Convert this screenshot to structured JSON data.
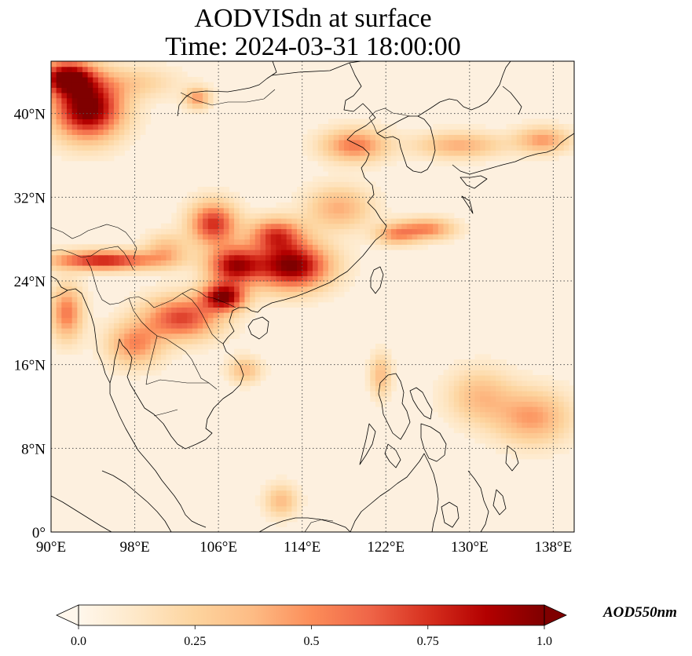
{
  "title": {
    "line1": "AODVISdn at surface",
    "line2": "Time: 2024-03-31 18:00:00"
  },
  "map": {
    "projection": "PlateCarree",
    "lon_range": [
      90,
      140
    ],
    "lat_range": [
      0,
      45
    ],
    "gridlines": true,
    "lon_ticks": [
      90,
      98,
      106,
      114,
      122,
      130,
      138
    ],
    "lon_labels": [
      "90°E",
      "98°E",
      "106°E",
      "114°E",
      "122°E",
      "130°E",
      "138°E"
    ],
    "lat_ticks": [
      0,
      8,
      16,
      24,
      32,
      40
    ],
    "lat_labels": [
      "0°",
      "8°N",
      "16°N",
      "24°N",
      "32°N",
      "40°N"
    ],
    "field": "AOD550nm",
    "background_color": "#fdf0df",
    "aerosol_hotspots": [
      {
        "lon": 93.5,
        "lat": 40.5,
        "value": 1.0,
        "sx": 3.2,
        "sy": 2.8
      },
      {
        "lon": 91.5,
        "lat": 43.5,
        "value": 0.9,
        "sx": 2.5,
        "sy": 1.6
      },
      {
        "lon": 113.0,
        "lat": 25.5,
        "value": 0.95,
        "sx": 3.5,
        "sy": 2.2
      },
      {
        "lon": 107.5,
        "lat": 25.5,
        "value": 0.8,
        "sx": 2.5,
        "sy": 1.8
      },
      {
        "lon": 106.5,
        "lat": 22.5,
        "value": 0.9,
        "sx": 2.0,
        "sy": 1.3
      },
      {
        "lon": 105.5,
        "lat": 29.5,
        "value": 0.7,
        "sx": 2.2,
        "sy": 2.0
      },
      {
        "lon": 111.5,
        "lat": 28.5,
        "value": 0.6,
        "sx": 2.5,
        "sy": 1.5
      },
      {
        "lon": 102.5,
        "lat": 20.5,
        "value": 0.65,
        "sx": 3.5,
        "sy": 2.0
      },
      {
        "lon": 95.0,
        "lat": 26.0,
        "value": 0.75,
        "sx": 5.0,
        "sy": 0.9
      },
      {
        "lon": 91.5,
        "lat": 21.0,
        "value": 0.5,
        "sx": 1.5,
        "sy": 2.5
      },
      {
        "lon": 119.0,
        "lat": 37.0,
        "value": 0.5,
        "sx": 3.0,
        "sy": 1.5
      },
      {
        "lon": 126.0,
        "lat": 29.0,
        "value": 0.45,
        "sx": 2.5,
        "sy": 1.0
      },
      {
        "lon": 123.0,
        "lat": 28.5,
        "value": 0.4,
        "sx": 2.0,
        "sy": 1.0
      },
      {
        "lon": 117.5,
        "lat": 31.0,
        "value": 0.35,
        "sx": 3.0,
        "sy": 2.0
      },
      {
        "lon": 104.0,
        "lat": 41.5,
        "value": 0.4,
        "sx": 1.2,
        "sy": 1.0
      },
      {
        "lon": 136.0,
        "lat": 11.0,
        "value": 0.4,
        "sx": 3.5,
        "sy": 2.5
      },
      {
        "lon": 131.0,
        "lat": 13.0,
        "value": 0.3,
        "sx": 3.0,
        "sy": 2.5
      },
      {
        "lon": 129.0,
        "lat": 37.0,
        "value": 0.35,
        "sx": 4.0,
        "sy": 1.2
      },
      {
        "lon": 137.0,
        "lat": 37.5,
        "value": 0.4,
        "sx": 2.5,
        "sy": 1.2
      },
      {
        "lon": 112.0,
        "lat": 3.0,
        "value": 0.3,
        "sx": 1.5,
        "sy": 1.5
      },
      {
        "lon": 98.0,
        "lat": 18.0,
        "value": 0.45,
        "sx": 2.5,
        "sy": 2.0
      },
      {
        "lon": 108.5,
        "lat": 15.5,
        "value": 0.3,
        "sx": 1.5,
        "sy": 1.2
      },
      {
        "lon": 98.0,
        "lat": 43.0,
        "value": 0.2,
        "sx": 4.0,
        "sy": 1.5
      },
      {
        "lon": 101.0,
        "lat": 27.0,
        "value": 0.3,
        "sx": 2.0,
        "sy": 1.5
      },
      {
        "lon": 121.5,
        "lat": 15.0,
        "value": 0.3,
        "sx": 1.0,
        "sy": 2.0
      }
    ]
  },
  "colorbar": {
    "label": "AOD550nm",
    "min": 0.0,
    "max": 1.0,
    "ticks": [
      0.0,
      0.25,
      0.5,
      0.75,
      1.0
    ],
    "tick_labels": [
      "0.0",
      "0.25",
      "0.5",
      "0.75",
      "1.0"
    ],
    "extend": "both",
    "colormap": "OrRd",
    "color_stops": [
      "#fff7ec",
      "#fee8c8",
      "#fdd49e",
      "#fdbb84",
      "#fc8d59",
      "#ef6548",
      "#d7301f",
      "#b30000",
      "#7f0000"
    ]
  }
}
